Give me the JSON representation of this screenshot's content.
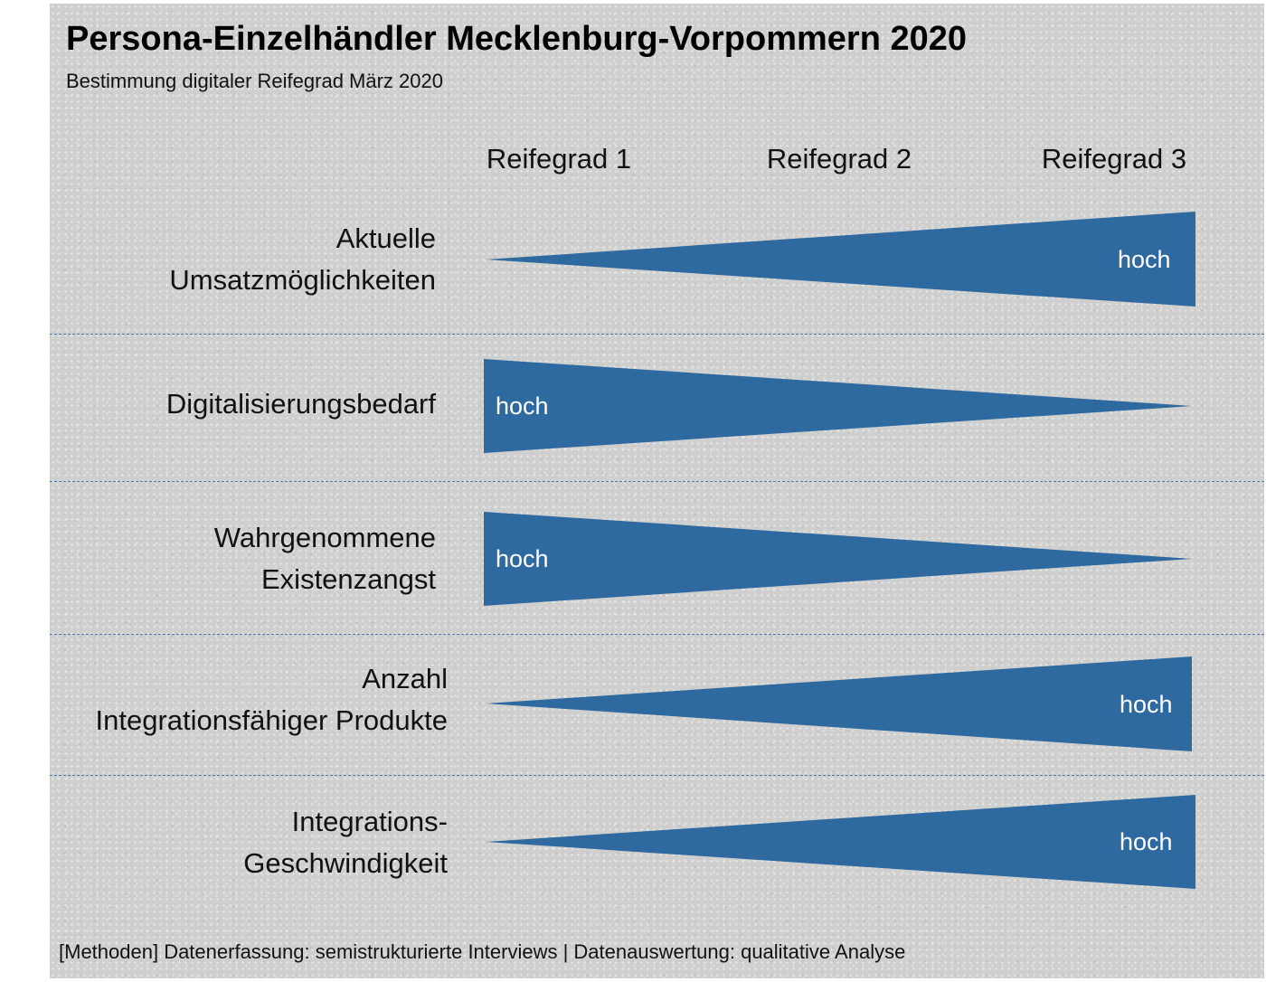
{
  "title": "Persona-Einzelhändler Mecklenburg-Vorpommern 2020",
  "subtitle": "Bestimmung digitaler Reifegrad März 2020",
  "columns": [
    "Reifegrad 1",
    "Reifegrad 2",
    "Reifegrad 3"
  ],
  "rows": [
    {
      "line1": "Aktuelle",
      "line2": "Umsatzmöglichkeiten",
      "high_end": "Reifegrad 3",
      "label": "hoch"
    },
    {
      "line1": "Digitalisierungsbedarf",
      "line2": "",
      "high_end": "Reifegrad 1",
      "label": "hoch"
    },
    {
      "line1": "Wahrgenommene",
      "line2": "Existenzangst",
      "high_end": "Reifegrad 1",
      "label": "hoch"
    },
    {
      "line1": "Anzahl",
      "line2": "Integrationsfähiger Produkte",
      "high_end": "Reifegrad 3",
      "label": "hoch"
    },
    {
      "line1": "Integrations-",
      "line2": "Geschwindigkeit",
      "high_end": "Reifegrad 3",
      "label": "hoch"
    }
  ],
  "footer": "[Methoden] Datenerfassung: semistrukturierte Interviews | Datenauswertung: qualitative Analyse",
  "colors": {
    "wedge": "#2e6aa0",
    "wedge_label": "#ffffff",
    "divider": "#4a78b0",
    "panel": "#cfcfcf"
  }
}
